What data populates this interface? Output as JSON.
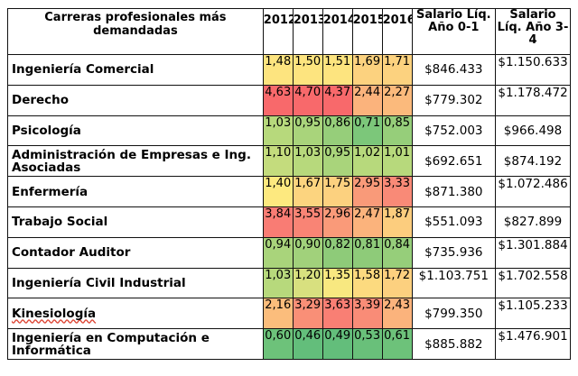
{
  "table": {
    "headers": {
      "career": "Carreras profesionales más demandadas",
      "years": [
        "2012",
        "2013",
        "2014",
        "2015",
        "2016"
      ],
      "salary_year1": "Salario Líq. Año 0-1",
      "salary_year34": "Salario Líq. Año 3-4"
    },
    "rows": [
      {
        "career": "Ingeniería Comercial",
        "values": [
          "1,48",
          "1,50",
          "1,51",
          "1,69",
          "1,71"
        ],
        "colors": [
          "#fde47f",
          "#fde47f",
          "#fde47f",
          "#fcd27f",
          "#fcd27f"
        ],
        "salary1": "$846.433",
        "salary2": "$1.150.633"
      },
      {
        "career": "Derecho",
        "values": [
          "4,63",
          "4,70",
          "4,37",
          "2,44",
          "2,27"
        ],
        "colors": [
          "#f8696b",
          "#f8696b",
          "#f8696b",
          "#fbb37c",
          "#fbba7c"
        ],
        "salary1": "$779.302",
        "salary2": "$1.178.472"
      },
      {
        "career": "Psicología",
        "values": [
          "1,03",
          "0,95",
          "0,86",
          "0,71",
          "0,85"
        ],
        "colors": [
          "#b7d97c",
          "#a9d47b",
          "#96ce7a",
          "#7cc77a",
          "#96ce7a"
        ],
        "salary1": "$752.003",
        "salary2": "$966.498"
      },
      {
        "career": "Administración de Empresas e Ing. Asociadas",
        "values": [
          "1,10",
          "1,03",
          "0,95",
          "1,02",
          "1,01"
        ],
        "colors": [
          "#c4dc7d",
          "#b7d97c",
          "#a9d47b",
          "#b7d97c",
          "#b7d97c"
        ],
        "salary1": "$692.651",
        "salary2": "$874.192"
      },
      {
        "career": "Enfermería",
        "values": [
          "1,40",
          "1,67",
          "1,75",
          "2,95",
          "3,33"
        ],
        "colors": [
          "#fde97f",
          "#fcd47f",
          "#fcd17f",
          "#f99a79",
          "#f98a77"
        ],
        "salary1": "$871.380",
        "salary2": "$1.072.486"
      },
      {
        "career": "Trabajo Social",
        "values": [
          "3,84",
          "3,55",
          "2,96",
          "2,47",
          "1,87"
        ],
        "colors": [
          "#f97c74",
          "#f98475",
          "#fa9a79",
          "#fbb37c",
          "#fccd7e"
        ],
        "salary1": "$551.093",
        "salary2": "$827.899"
      },
      {
        "career": "Contador Auditor",
        "values": [
          "0,94",
          "0,90",
          "0,82",
          "0,81",
          "0,84"
        ],
        "colors": [
          "#a9d47b",
          "#a1d17b",
          "#8ecb79",
          "#8ecb79",
          "#96ce7a"
        ],
        "salary1": "$735.936",
        "salary2": "$1.301.884"
      },
      {
        "career": "Ingeniería Civil Industrial",
        "values": [
          "1,03",
          "1,20",
          "1,35",
          "1,58",
          "1,72"
        ],
        "colors": [
          "#b7d97c",
          "#d8e07f",
          "#f8e880",
          "#fcda7f",
          "#fcd07f"
        ],
        "salary1": "$1.103.751",
        "salary2": "$1.702.558"
      },
      {
        "career": "Kinesiología",
        "values": [
          "2,16",
          "3,29",
          "3,63",
          "3,39",
          "2,43"
        ],
        "colors": [
          "#fbbd7c",
          "#f98f77",
          "#f97f74",
          "#f98c77",
          "#fbb37c"
        ],
        "salary1": "$799.350",
        "salary2": "$1.105.233"
      },
      {
        "career": "Ingeniería en Computación e Informática",
        "values": [
          "0,60",
          "0,46",
          "0,49",
          "0,53",
          "0,61"
        ],
        "colors": [
          "#6dc27a",
          "#63be7b",
          "#63be7b",
          "#69c07a",
          "#6dc27a"
        ],
        "salary1": "$885.882",
        "salary2": "$1.476.901"
      }
    ]
  }
}
